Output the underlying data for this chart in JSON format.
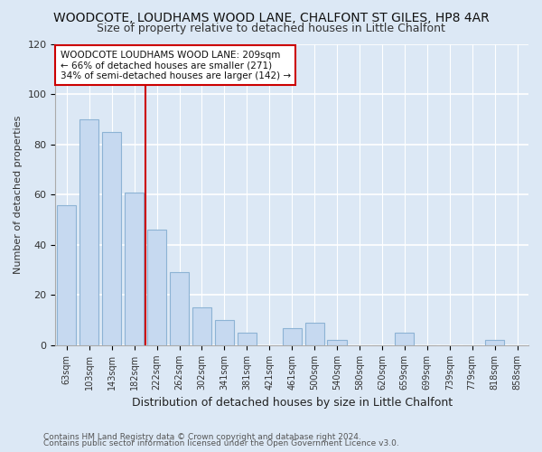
{
  "title": "WOODCOTE, LOUDHAMS WOOD LANE, CHALFONT ST GILES, HP8 4AR",
  "subtitle": "Size of property relative to detached houses in Little Chalfont",
  "xlabel": "Distribution of detached houses by size in Little Chalfont",
  "ylabel": "Number of detached properties",
  "bar_labels": [
    "63sqm",
    "103sqm",
    "143sqm",
    "182sqm",
    "222sqm",
    "262sqm",
    "302sqm",
    "341sqm",
    "381sqm",
    "421sqm",
    "461sqm",
    "500sqm",
    "540sqm",
    "580sqm",
    "620sqm",
    "659sqm",
    "699sqm",
    "739sqm",
    "779sqm",
    "818sqm",
    "858sqm"
  ],
  "bar_values": [
    56,
    90,
    85,
    61,
    46,
    29,
    15,
    10,
    5,
    0,
    7,
    9,
    2,
    0,
    0,
    5,
    0,
    0,
    0,
    2,
    0
  ],
  "bar_color": "#c6d9f0",
  "bar_edge_color": "#8db3d4",
  "highlight_line_color": "#cc0000",
  "annotation_text": "WOODCOTE LOUDHAMS WOOD LANE: 209sqm\n← 66% of detached houses are smaller (271)\n34% of semi-detached houses are larger (142) →",
  "annotation_box_color": "#ffffff",
  "annotation_box_edge": "#cc0000",
  "ylim": [
    0,
    120
  ],
  "yticks": [
    0,
    20,
    40,
    60,
    80,
    100,
    120
  ],
  "footer1": "Contains HM Land Registry data © Crown copyright and database right 2024.",
  "footer2": "Contains public sector information licensed under the Open Government Licence v3.0.",
  "bg_color": "#dce8f5",
  "plot_bg_color": "#dce8f5",
  "title_fontsize": 10,
  "subtitle_fontsize": 9,
  "grid_color": "#c0d0e8"
}
